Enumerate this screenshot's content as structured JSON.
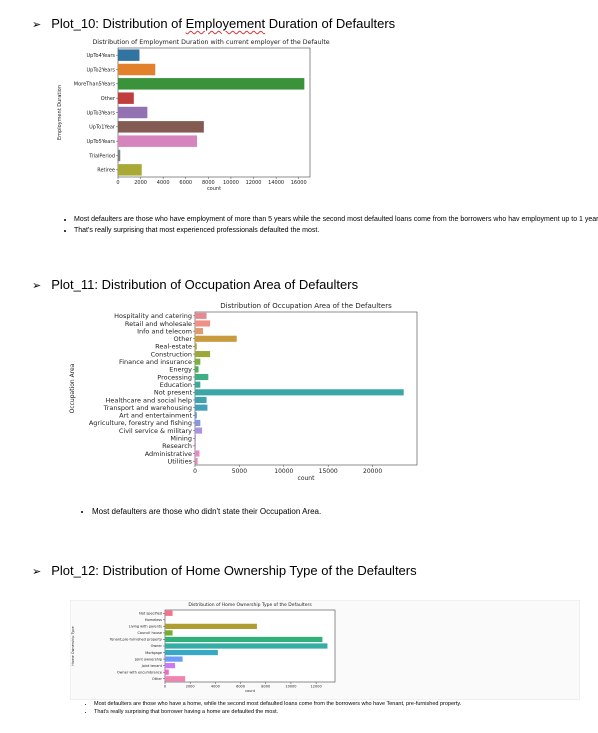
{
  "sections": [
    {
      "heading_arrow": "➢",
      "heading_prefix": "Plot_10: Distribution of ",
      "heading_misspelled": "Employement",
      "heading_suffix": " Duration of Defaulters",
      "bullets": [
        "Most defaulters are those who have employment of more than 5 years while the second most defaulted loans come from the borrowers who hav employment up to 1 year.",
        "That's really surprising that most experienced professionals defaulted the most."
      ]
    },
    {
      "heading_arrow": "➢",
      "heading": "Plot_11: Distribution of Occupation Area of Defaulters",
      "bullets": [
        "Most defaulters are those who didn't state their Occupation Area."
      ]
    },
    {
      "heading_arrow": "➢",
      "heading": "Plot_12: Distribution of Home Ownership Type of the Defaulters",
      "bullets": [
        "Most defaulters are those who have a home, while the second most defaulted loans come from the borrowers who have Tenant, pre-furnished property.",
        "That's really surprising that borrower having a home are defaulted the most."
      ]
    }
  ],
  "chart_data": [
    {
      "type": "bar",
      "orientation": "horizontal",
      "title": "Distribution of  Employment Duration with current employer of the Defaulters",
      "xlabel": "count",
      "ylabel": "Employment Duration",
      "xlim": [
        0,
        17000
      ],
      "xticks": [
        0,
        2000,
        4000,
        6000,
        8000,
        10000,
        12000,
        14000,
        16000
      ],
      "categories": [
        "UpTo4Years",
        "UpTo2Years",
        "MoreThan5Years",
        "Other",
        "UpTo3Years",
        "UpTo1Year",
        "UpTo5Years",
        "TrialPeriod",
        "Retiree"
      ],
      "values": [
        1900,
        3300,
        16500,
        1400,
        2600,
        7600,
        7000,
        200,
        2100
      ],
      "colors": [
        "#3274a1",
        "#e1812c",
        "#3a923a",
        "#c03d3e",
        "#9372b2",
        "#845b53",
        "#d684bd",
        "#7f7f7f",
        "#a9aa35"
      ]
    },
    {
      "type": "bar",
      "orientation": "horizontal",
      "title": "Distribution of Occupation Area of the Defaulters",
      "xlabel": "count",
      "ylabel": "Occupation Area",
      "xlim": [
        0,
        25000
      ],
      "xticks": [
        0,
        5000,
        10000,
        15000,
        20000
      ],
      "categories": [
        "Hospitality and catering",
        "Retail and wholesale",
        "Info and telecom",
        "Other",
        "Real-estate",
        "Construction",
        "Finance and insurance",
        "Energy",
        "Processing",
        "Education",
        "Not present",
        "Healthcare and social help",
        "Transport and warehousing",
        "Art and entertainment",
        "Agriculture, forestry and fishing",
        "Civil service & military",
        "Mining",
        "Research",
        "Administrative",
        "Utilities"
      ],
      "values": [
        1300,
        1700,
        900,
        4700,
        200,
        1700,
        600,
        400,
        1500,
        600,
        23500,
        1300,
        1400,
        200,
        600,
        800,
        100,
        100,
        500,
        300
      ],
      "colors": [
        "#e78a8f",
        "#ee9085",
        "#e09b70",
        "#c89b3e",
        "#b7a23a",
        "#9ea83a",
        "#7db13d",
        "#4cb04d",
        "#40ae85",
        "#3ea99a",
        "#3aa6a6",
        "#3da3ae",
        "#42a0bb",
        "#5a9bd0",
        "#8597de",
        "#a994e0",
        "#c58ede",
        "#d98bd6",
        "#e388c8",
        "#e88ab0"
      ]
    },
    {
      "type": "bar",
      "orientation": "horizontal",
      "title": "Distribution of Home Ownership Type of the Defaulters",
      "xlabel": "count",
      "ylabel": "Home Ownership Type",
      "xlim": [
        0,
        13500
      ],
      "xticks": [
        0,
        2000,
        4000,
        6000,
        8000,
        10000,
        12000
      ],
      "categories": [
        "Not specified",
        "Homeless",
        "Living with parents",
        "Council house",
        "Tenant,pre-furnished property",
        "Owner",
        "Mortgage",
        "Joint ownership",
        "Joint tenant",
        "Owner with encumbrance",
        "Other"
      ],
      "values": [
        600,
        0,
        7300,
        600,
        12500,
        12900,
        4200,
        1400,
        800,
        300,
        1600
      ],
      "colors": [
        "#f77189",
        "#dc8932",
        "#ae9d31",
        "#77ab31",
        "#33b07a",
        "#36ada4",
        "#38a9c5",
        "#6e9bf4",
        "#cc7af4",
        "#f565cc",
        "#f282b2"
      ]
    }
  ]
}
